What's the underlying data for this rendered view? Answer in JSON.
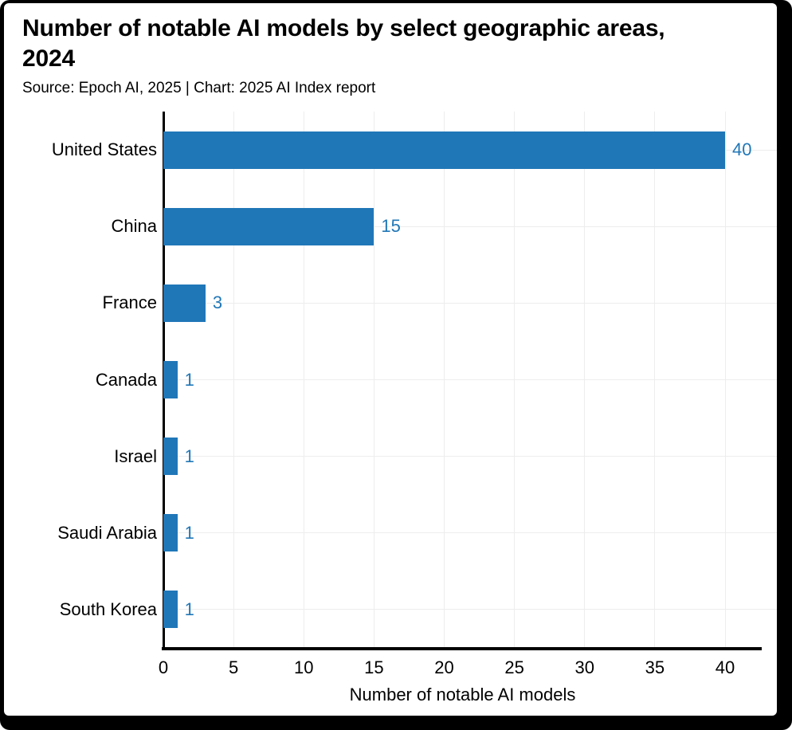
{
  "chart_data": {
    "type": "bar",
    "orientation": "horizontal",
    "title": "Number of notable AI models by select geographic areas, 2024",
    "source_note": "Source: Epoch AI, 2025 | Chart: 2025 AI Index report",
    "categories": [
      "United States",
      "China",
      "France",
      "Canada",
      "Israel",
      "Saudi Arabia",
      "South Korea"
    ],
    "values": [
      40,
      15,
      3,
      1,
      1,
      1,
      1
    ],
    "value_labels": [
      "40",
      "15",
      "3",
      "1",
      "1",
      "1",
      "1"
    ],
    "xlabel": "Number of notable AI models",
    "x_ticks": [
      0,
      5,
      10,
      15,
      20,
      25,
      30,
      35,
      40
    ],
    "xlim": [
      0,
      42.7
    ],
    "grid": true,
    "legend": "none",
    "colors": {
      "bar": "#2077b7",
      "value_label": "#2077b7",
      "gridline": "#ededed",
      "axis": "#000000",
      "text": "#000000"
    }
  }
}
